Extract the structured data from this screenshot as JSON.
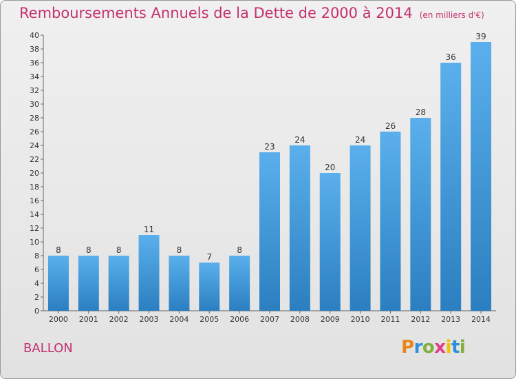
{
  "title": "Remboursements Annuels de la Dette de 2000 à 2014",
  "unit_label": "(en milliers d'€)",
  "commune": "BALLON",
  "logo": {
    "letters": [
      "P",
      "r",
      "o",
      "x",
      "i",
      "t",
      "i"
    ],
    "colors": [
      "#e8871e",
      "#2f8fd6",
      "#7fb03a",
      "#e03c8a",
      "#f2c200",
      "#2f8fd6",
      "#7fb03a"
    ]
  },
  "colors": {
    "bar_light": "#5aafec",
    "bar_dark": "#2b7fc0",
    "title": "#c4316c"
  },
  "chart_data": {
    "type": "bar",
    "title": "Remboursements Annuels de la Dette de 2000 à 2014",
    "xlabel": "",
    "ylabel": "",
    "categories": [
      "2000",
      "2001",
      "2002",
      "2003",
      "2004",
      "2005",
      "2006",
      "2007",
      "2008",
      "2009",
      "2010",
      "2011",
      "2012",
      "2013",
      "2014"
    ],
    "values": [
      8,
      8,
      8,
      11,
      8,
      7,
      8,
      23,
      24,
      20,
      24,
      26,
      28,
      36,
      39
    ],
    "ylim": [
      0,
      40
    ],
    "ytick_step": 2,
    "grid": false
  }
}
